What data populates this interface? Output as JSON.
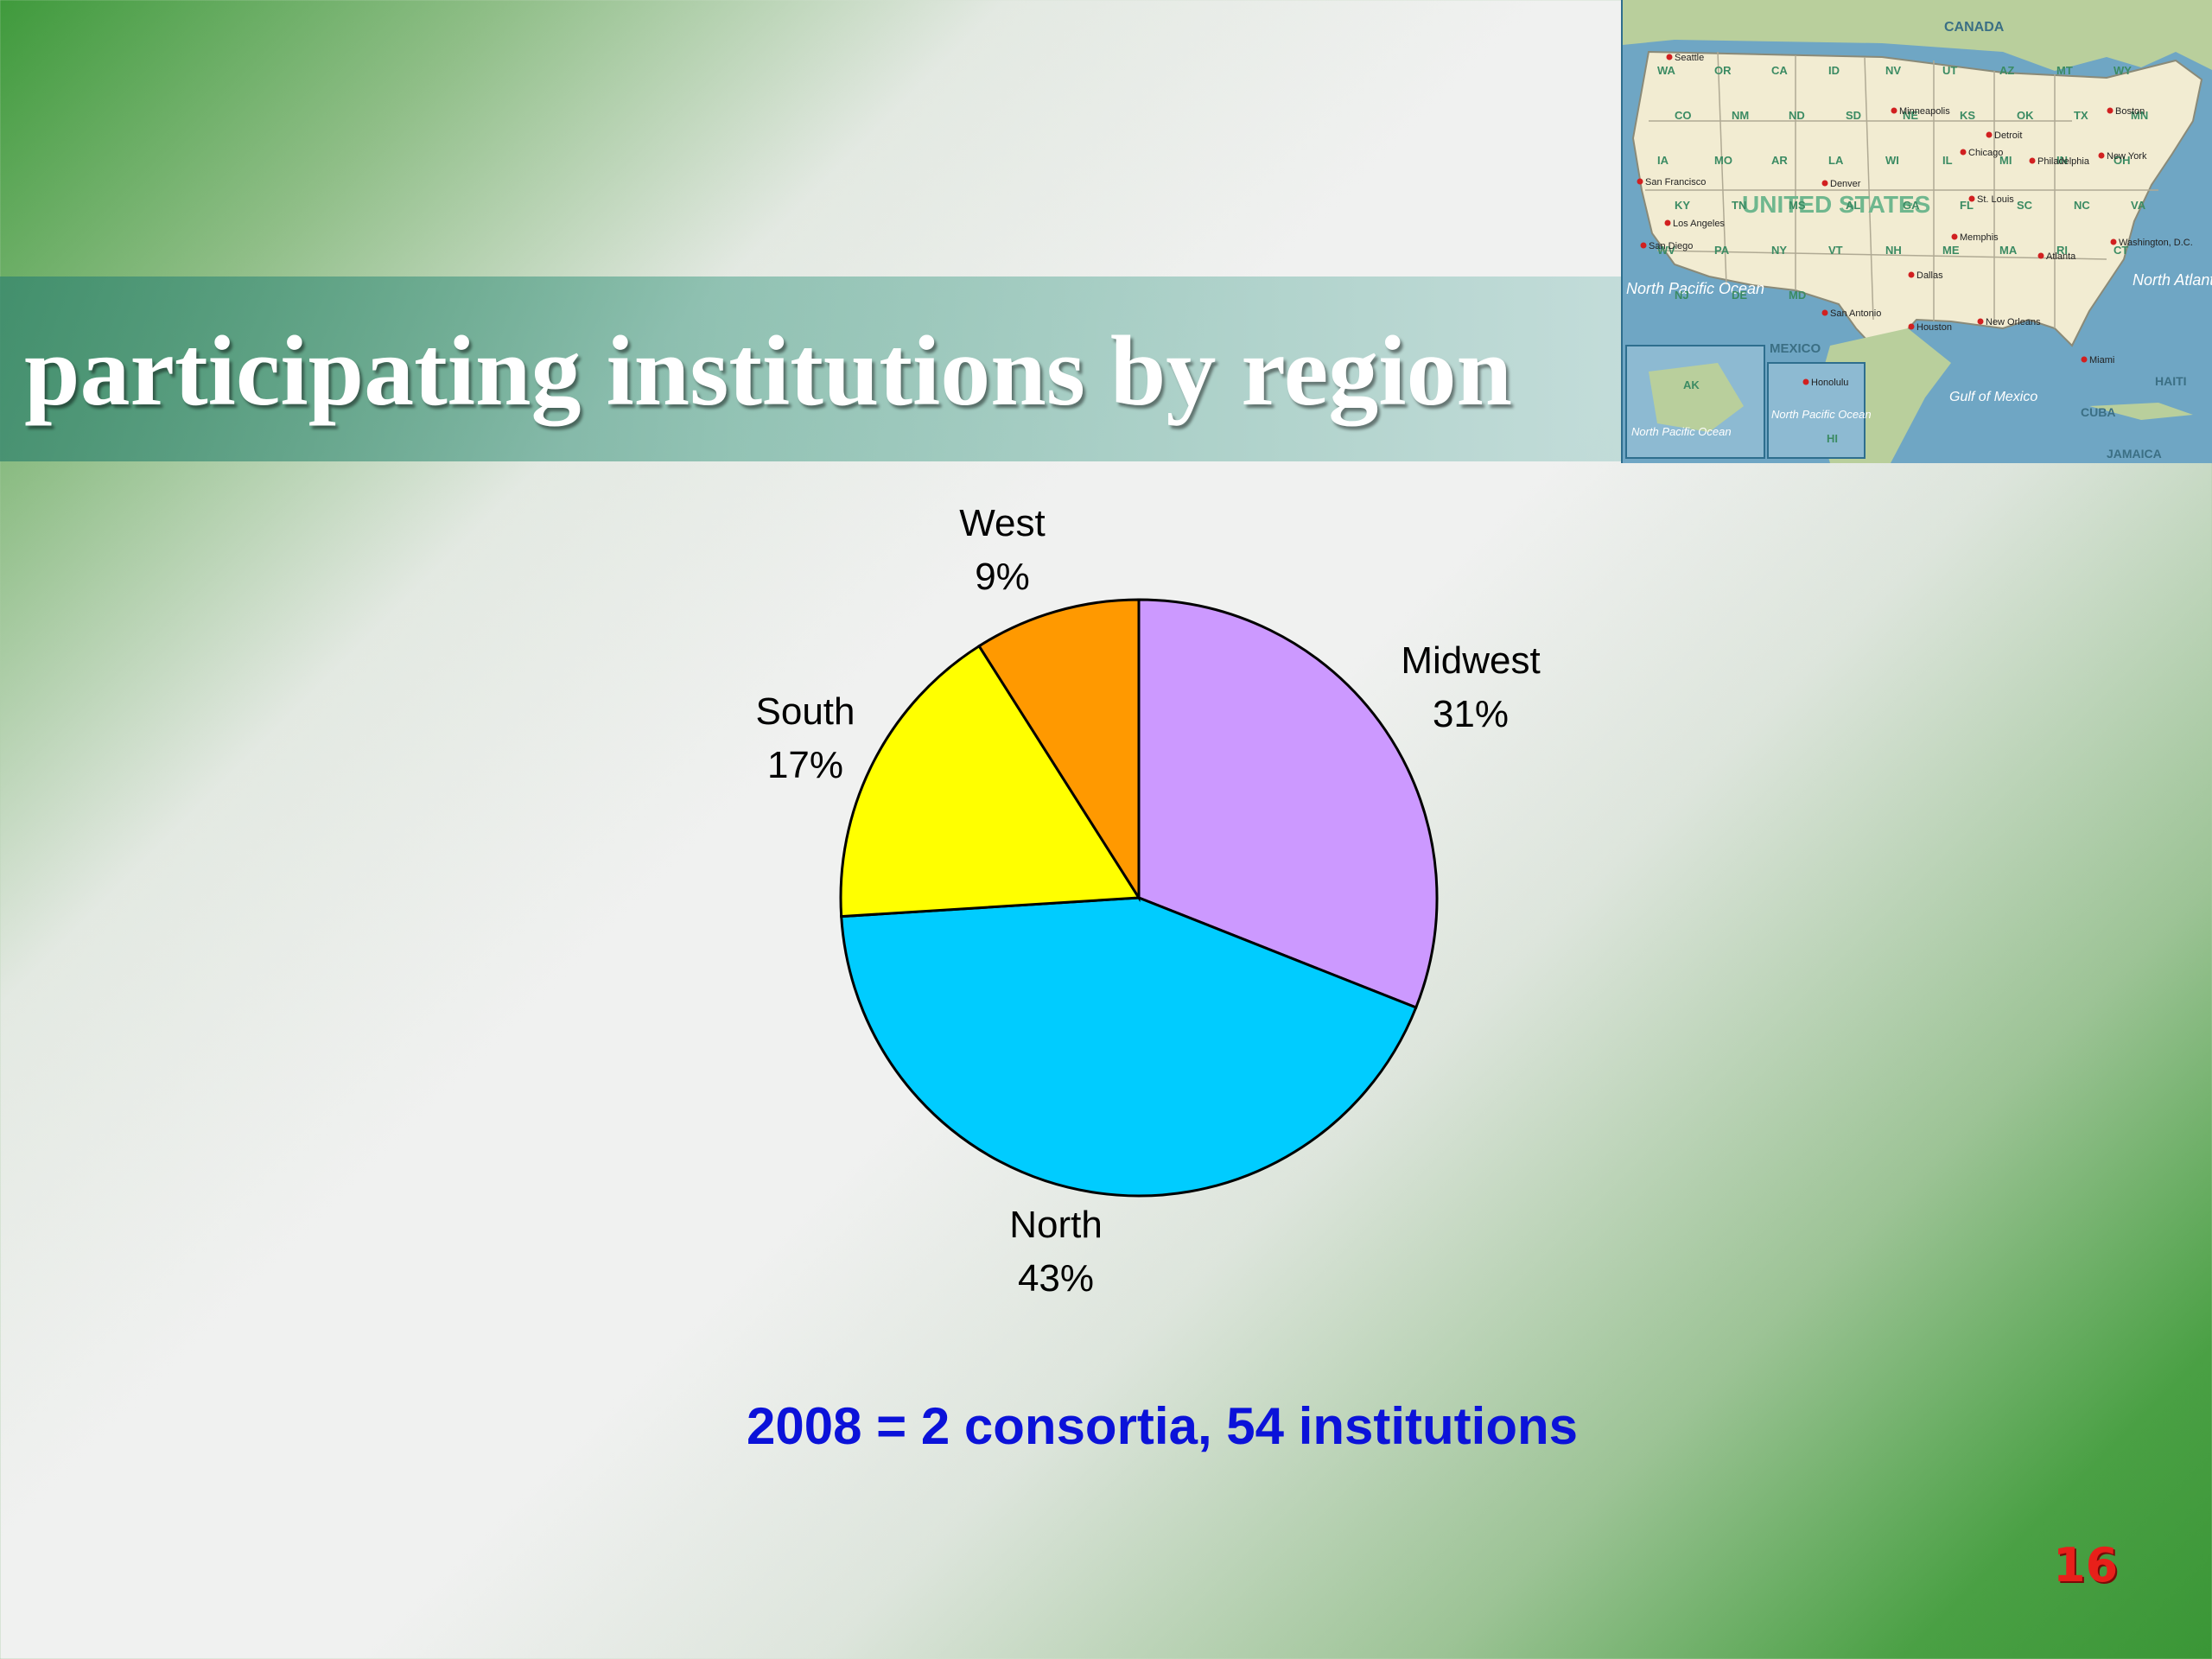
{
  "slide": {
    "title": "participating institutions by region",
    "caption": "2008 = 2 consortia, 54 institutions",
    "page_number": "16"
  },
  "map": {
    "country_labels": [
      "CANADA",
      "UNITED STATES",
      "MEXICO",
      "CUBA",
      "HAITI",
      "JAMAICA"
    ],
    "water_labels": [
      "North Pacific Ocean",
      "North Atlantic Ocean",
      "Gulf of Mexico",
      "North Pacific Ocean",
      "North Pacific Ocean"
    ],
    "state_labels": [
      "WA",
      "OR",
      "CA",
      "ID",
      "NV",
      "UT",
      "AZ",
      "MT",
      "WY",
      "CO",
      "NM",
      "ND",
      "SD",
      "NE",
      "KS",
      "OK",
      "TX",
      "MN",
      "IA",
      "MO",
      "AR",
      "LA",
      "WI",
      "IL",
      "MI",
      "IN",
      "OH",
      "KY",
      "TN",
      "MS",
      "AL",
      "GA",
      "FL",
      "SC",
      "NC",
      "VA",
      "WV",
      "PA",
      "NY",
      "VT",
      "NH",
      "ME",
      "MA",
      "RI",
      "CT",
      "NJ",
      "DE",
      "MD",
      "AK",
      "HI"
    ],
    "cities": [
      "Seattle",
      "San Francisco",
      "Los Angeles",
      "San Diego",
      "Denver",
      "Minneapolis",
      "Chicago",
      "Detroit",
      "St. Louis",
      "Memphis",
      "Dallas",
      "San Antonio",
      "Houston",
      "New Orleans",
      "Atlanta",
      "Miami",
      "Philadelphia",
      "New York",
      "Boston",
      "Honolulu",
      "Washington, D.C."
    ],
    "colors": {
      "land": "#f2ecd2",
      "water": "#6fa6c4",
      "neighbor": "#b9cf9c",
      "state_text": "#3b8b63",
      "city_dot": "#d12020"
    }
  },
  "chart_data": {
    "type": "pie",
    "title": "",
    "slices": [
      {
        "label": "Midwest",
        "value": 31,
        "display": "31%",
        "color": "#cc99ff"
      },
      {
        "label": "North",
        "value": 43,
        "display": "43%",
        "color": "#00ccff"
      },
      {
        "label": "South",
        "value": 17,
        "display": "17%",
        "color": "#ffff00"
      },
      {
        "label": "West",
        "value": 9,
        "display": "9%",
        "color": "#ff9900"
      }
    ],
    "start": "12 o'clock",
    "direction": "clockwise",
    "label_position": "outside",
    "outline_color": "#000000"
  }
}
